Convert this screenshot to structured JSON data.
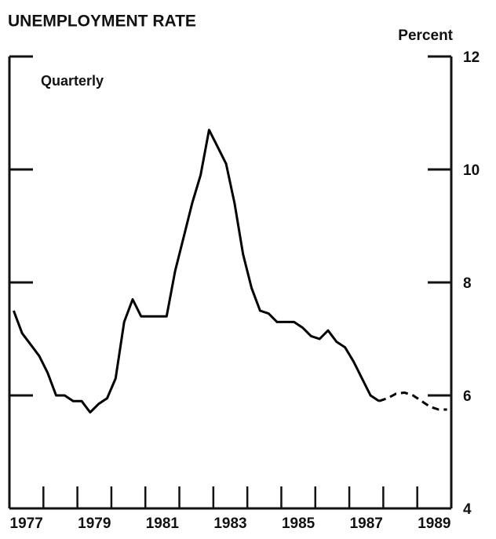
{
  "chart_data": {
    "type": "line",
    "title": "UNEMPLOYMENT RATE",
    "y_axis_label": "Percent",
    "annotation": "Quarterly",
    "x": [
      1977.125,
      1977.375,
      1977.625,
      1977.875,
      1978.125,
      1978.375,
      1978.625,
      1978.875,
      1979.125,
      1979.375,
      1979.625,
      1979.875,
      1980.125,
      1980.375,
      1980.625,
      1980.875,
      1981.125,
      1981.375,
      1981.625,
      1981.875,
      1982.125,
      1982.375,
      1982.625,
      1982.875,
      1983.125,
      1983.375,
      1983.625,
      1983.875,
      1984.125,
      1984.375,
      1984.625,
      1984.875,
      1985.125,
      1985.375,
      1985.625,
      1985.875,
      1986.125,
      1986.375,
      1986.625,
      1986.875,
      1987.125,
      1987.375,
      1987.625,
      1987.875,
      1988.125,
      1988.375,
      1988.625,
      1988.875,
      1989.125,
      1989.375,
      1989.625,
      1989.875
    ],
    "series": [
      {
        "color": "#000000",
        "style": "solid",
        "values": [
          7.5,
          7.1,
          6.9,
          6.7,
          6.4,
          6.0,
          6.0,
          5.9,
          5.9,
          5.7,
          5.85,
          5.95,
          6.3,
          7.3,
          7.7,
          7.4,
          7.4,
          7.4,
          7.4,
          8.2,
          8.8,
          9.4,
          9.9,
          10.7,
          10.4,
          10.1,
          9.4,
          8.5,
          7.9,
          7.5,
          7.45,
          7.3,
          7.3,
          7.3,
          7.2,
          7.05,
          7.0,
          7.15,
          6.95,
          6.85,
          6.6,
          6.3,
          6.0,
          5.9,
          null,
          null,
          null,
          null,
          null,
          null,
          null,
          null
        ]
      },
      {
        "color": "#000000",
        "style": "dashed",
        "values": [
          null,
          null,
          null,
          null,
          null,
          null,
          null,
          null,
          null,
          null,
          null,
          null,
          null,
          null,
          null,
          null,
          null,
          null,
          null,
          null,
          null,
          null,
          null,
          null,
          null,
          null,
          null,
          null,
          null,
          null,
          null,
          null,
          null,
          null,
          null,
          null,
          null,
          null,
          null,
          null,
          null,
          null,
          null,
          5.9,
          5.95,
          6.03,
          6.05,
          6.0,
          5.9,
          5.8,
          5.75,
          5.75
        ]
      }
    ],
    "xlim": [
      1977,
      1990
    ],
    "xticks": [
      {
        "value": 1977.5,
        "label": "1977"
      },
      {
        "value": 1979.5,
        "label": "1979"
      },
      {
        "value": 1981.5,
        "label": "1981"
      },
      {
        "value": 1983.5,
        "label": "1983"
      },
      {
        "value": 1985.5,
        "label": "1985"
      },
      {
        "value": 1987.5,
        "label": "1987"
      },
      {
        "value": 1989.5,
        "label": "1989"
      }
    ],
    "xtick_marks": [
      1978,
      1979,
      1980,
      1981,
      1982,
      1983,
      1984,
      1985,
      1986,
      1987,
      1988,
      1989
    ],
    "ylim": [
      4,
      12
    ],
    "yticks": [
      4,
      6,
      8,
      10,
      12
    ],
    "grid": false
  }
}
